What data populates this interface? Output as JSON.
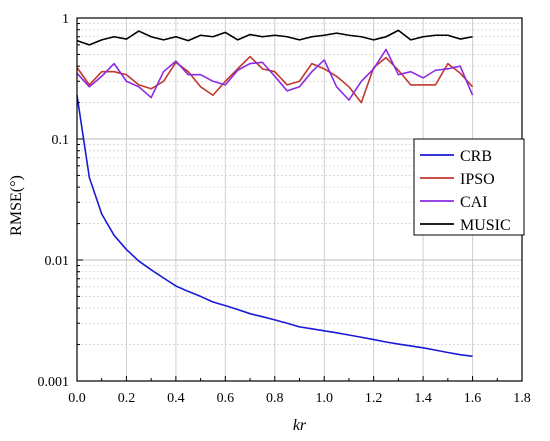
{
  "chart_data": {
    "type": "line",
    "xlabel": "kr",
    "ylabel": "RMSE(°)",
    "xlim": [
      0.0,
      1.8
    ],
    "ylim": [
      0.001,
      1
    ],
    "yscale": "log",
    "grid": true,
    "legend_position": "right",
    "xticks": [
      "0.0",
      "0.2",
      "0.4",
      "0.6",
      "0.8",
      "1.0",
      "1.2",
      "1.4",
      "1.6",
      "1.8"
    ],
    "yticks": [
      "0.001",
      "0.01",
      "0.1",
      "1"
    ],
    "x": [
      0.0,
      0.05,
      0.1,
      0.15,
      0.2,
      0.25,
      0.3,
      0.35,
      0.4,
      0.45,
      0.5,
      0.55,
      0.6,
      0.65,
      0.7,
      0.75,
      0.8,
      0.85,
      0.9,
      0.95,
      1.0,
      1.05,
      1.1,
      1.15,
      1.2,
      1.25,
      1.3,
      1.35,
      1.4,
      1.45,
      1.5,
      1.55,
      1.6
    ],
    "series": [
      {
        "name": "CRB",
        "color": "#1a1ad6",
        "values": [
          0.23,
          0.048,
          0.024,
          0.016,
          0.0122,
          0.0098,
          0.0083,
          0.0071,
          0.0061,
          0.0055,
          0.005,
          0.0045,
          0.0042,
          0.0039,
          0.0036,
          0.0034,
          0.0032,
          0.003,
          0.0028,
          0.0027,
          0.0026,
          0.0025,
          0.0024,
          0.0023,
          0.0022,
          0.0021,
          0.00202,
          0.00195,
          0.00188,
          0.0018,
          0.00172,
          0.00165,
          0.0016
        ]
      },
      {
        "name": "IPSO",
        "color": "#c0392b",
        "values": [
          0.39,
          0.28,
          0.36,
          0.36,
          0.34,
          0.28,
          0.26,
          0.3,
          0.43,
          0.36,
          0.27,
          0.23,
          0.3,
          0.38,
          0.48,
          0.38,
          0.36,
          0.28,
          0.3,
          0.42,
          0.38,
          0.33,
          0.27,
          0.2,
          0.39,
          0.47,
          0.37,
          0.28,
          0.28,
          0.28,
          0.42,
          0.35,
          0.27
        ]
      },
      {
        "name": "CAI",
        "color": "#8a2be2",
        "values": [
          0.35,
          0.27,
          0.33,
          0.42,
          0.3,
          0.27,
          0.22,
          0.36,
          0.44,
          0.34,
          0.34,
          0.3,
          0.28,
          0.37,
          0.42,
          0.43,
          0.33,
          0.25,
          0.27,
          0.36,
          0.45,
          0.27,
          0.21,
          0.3,
          0.38,
          0.55,
          0.34,
          0.36,
          0.32,
          0.37,
          0.38,
          0.4,
          0.23
        ]
      },
      {
        "name": "MUSIC",
        "color": "#000000",
        "values": [
          0.65,
          0.6,
          0.66,
          0.7,
          0.67,
          0.78,
          0.7,
          0.66,
          0.7,
          0.65,
          0.72,
          0.7,
          0.76,
          0.66,
          0.73,
          0.7,
          0.72,
          0.7,
          0.66,
          0.7,
          0.72,
          0.75,
          0.72,
          0.7,
          0.66,
          0.7,
          0.79,
          0.66,
          0.7,
          0.72,
          0.72,
          0.67,
          0.7
        ]
      }
    ]
  }
}
